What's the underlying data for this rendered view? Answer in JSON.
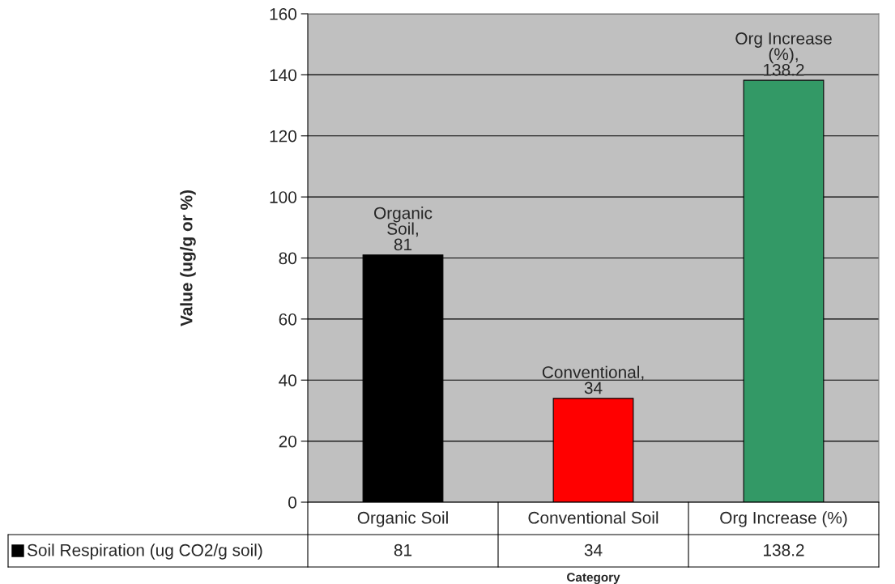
{
  "chart_data": {
    "type": "bar",
    "xlabel": "Category",
    "ylabel": "Value (ug/g or %)",
    "categories": [
      "Organic Soil",
      "Conventional Soil",
      "Org Increase (%)"
    ],
    "series": [
      {
        "name": "Soil Respiration (ug CO2/g soil)",
        "color": "#000000",
        "colors": [
          "#000000",
          "#ff0000",
          "#339966"
        ],
        "values": [
          81,
          34,
          138.2
        ]
      }
    ],
    "annotations": [
      {
        "text": "Organic\nSoil,\n81",
        "x": "Organic Soil",
        "y": 81
      },
      {
        "text": "Conventional,\n34",
        "x": "Conventional Soil",
        "y": 34
      },
      {
        "text": "Org Increase\n(%),\n138.2",
        "x": "Org Increase (%)",
        "y": 138.2
      }
    ],
    "ylim": [
      0,
      160
    ],
    "yticks": [
      0,
      20,
      40,
      60,
      80,
      100,
      120,
      140,
      160
    ],
    "grid": "y",
    "data_labels": true
  }
}
